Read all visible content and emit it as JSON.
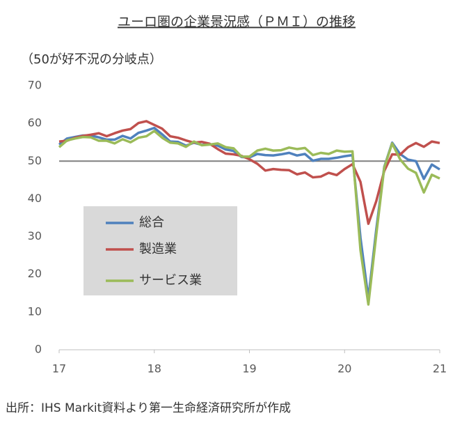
{
  "chart_data": {
    "type": "line",
    "title": "ユーロ圏の企業景況感（ＰＭＩ）の推移",
    "subtitle": "（50が好不況の分岐点）",
    "source": "出所：IHS Markit資料より第一生命経済研究所が作成",
    "x": [
      17,
      17.083,
      17.167,
      17.25,
      17.333,
      17.417,
      17.5,
      17.583,
      17.667,
      17.75,
      17.833,
      17.917,
      18,
      18.083,
      18.167,
      18.25,
      18.333,
      18.417,
      18.5,
      18.583,
      18.667,
      18.75,
      18.833,
      18.917,
      19,
      19.083,
      19.167,
      19.25,
      19.333,
      19.417,
      19.5,
      19.583,
      19.667,
      19.75,
      19.833,
      19.917,
      20,
      20.083,
      20.167,
      20.25,
      20.333,
      20.417,
      20.5,
      20.583,
      20.667,
      20.75,
      20.833,
      20.917,
      21
    ],
    "series": [
      {
        "name": "総合",
        "color": "#4f81bd",
        "values": [
          54.4,
          56,
          56.4,
          56.8,
          56.8,
          56.3,
          55.7,
          55.7,
          56.7,
          56,
          57.5,
          58.1,
          58.8,
          57.1,
          55.2,
          55.1,
          54.1,
          54.9,
          54.3,
          54.5,
          54.1,
          53.1,
          52.7,
          51.1,
          51,
          51.9,
          51.6,
          51.5,
          51.8,
          52.2,
          51.5,
          51.9,
          50.1,
          50.6,
          50.6,
          50.9,
          51.3,
          51.6,
          29.7,
          13.6,
          31.9,
          48.5,
          54.9,
          51.9,
          50.4,
          50,
          45.3,
          49.1,
          47.8
        ]
      },
      {
        "name": "製造業",
        "color": "#c0504d",
        "values": [
          55.2,
          55.4,
          56.2,
          56.7,
          57,
          57.4,
          56.6,
          57.4,
          58.1,
          58.5,
          60.1,
          60.6,
          59.6,
          58.6,
          56.6,
          56.2,
          55.5,
          54.9,
          55.1,
          54.6,
          53.2,
          52,
          51.8,
          51.4,
          50.5,
          49.3,
          47.5,
          47.9,
          47.7,
          47.6,
          46.5,
          47,
          45.7,
          45.9,
          46.9,
          46.3,
          47.9,
          49.2,
          44.5,
          33.4,
          39.4,
          47.4,
          51.8,
          51.7,
          53.7,
          54.8,
          53.8,
          55.2,
          54.8
        ]
      },
      {
        "name": "サービス業",
        "color": "#9bbb59",
        "values": [
          53.7,
          55.5,
          56,
          56.4,
          56.3,
          55.4,
          55.4,
          54.7,
          55.8,
          55,
          56.2,
          56.6,
          58,
          56.2,
          54.9,
          54.7,
          53.8,
          55.2,
          54.2,
          54.4,
          54.7,
          53.7,
          53.4,
          51.2,
          51.2,
          52.8,
          53.3,
          52.8,
          52.9,
          53.6,
          53.2,
          53.5,
          51.6,
          52.2,
          51.9,
          52.8,
          52.5,
          52.6,
          26.4,
          12,
          30.5,
          48.3,
          54.7,
          50.5,
          48,
          46.9,
          41.7,
          46.4,
          45.4
        ]
      }
    ],
    "xlim": [
      17,
      21
    ],
    "xticks": [
      17,
      18,
      19,
      20,
      21
    ],
    "ylim": [
      0,
      70
    ],
    "yticks": [
      0,
      10,
      20,
      30,
      40,
      50,
      60,
      70
    ],
    "reference_line": 50,
    "reference_color": "#7f7f7f",
    "legend_background": "#d9d9d9",
    "grid": false
  }
}
